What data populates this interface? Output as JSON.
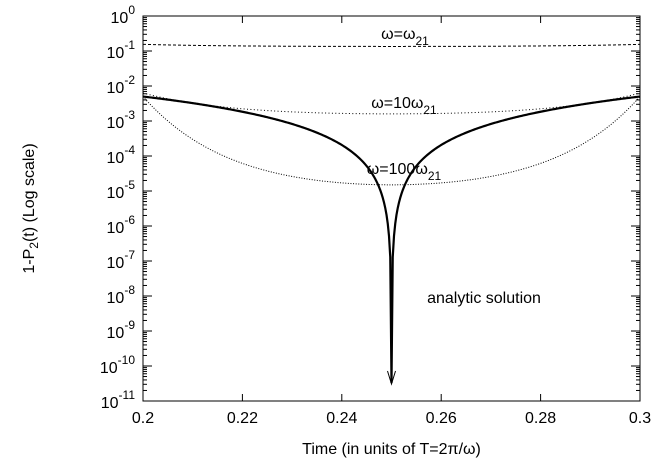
{
  "chart_data": {
    "type": "line",
    "title": "",
    "xlabel": "Time (in units of T=2π/ω)",
    "ylabel": {
      "base": "1-P",
      "sub": "2",
      "rest": "(t) (Log scale)"
    },
    "yscale": "log",
    "xlim": [
      0.2,
      0.3
    ],
    "ylim_exp": [
      -11,
      0
    ],
    "grid": false,
    "legend": "none",
    "x_ticks": [
      "0.2",
      "0.22",
      "0.24",
      "0.26",
      "0.28",
      "0.3"
    ],
    "y_ticks": [
      {
        "base": "10",
        "exp": "0"
      },
      {
        "base": "10",
        "exp": "-1"
      },
      {
        "base": "10",
        "exp": "-2"
      },
      {
        "base": "10",
        "exp": "-3"
      },
      {
        "base": "10",
        "exp": "-4"
      },
      {
        "base": "10",
        "exp": "-5"
      },
      {
        "base": "10",
        "exp": "-6"
      },
      {
        "base": "10",
        "exp": "-7"
      },
      {
        "base": "10",
        "exp": "-8"
      },
      {
        "base": "10",
        "exp": "-9"
      },
      {
        "base": "10",
        "exp": "-10"
      },
      {
        "base": "10",
        "exp": "-11"
      }
    ],
    "series": [
      {
        "style": "solid",
        "model": "analytic",
        "center": 0.25,
        "x": [
          0.2,
          0.21,
          0.22,
          0.23,
          0.24,
          0.245,
          0.25,
          0.255,
          0.26,
          0.27,
          0.28,
          0.29,
          0.3
        ],
        "y": [
          0.005,
          0.0027,
          0.0012,
          0.00039,
          6.2e-05,
          1.56e-05,
          0.0,
          1.56e-05,
          6.2e-05,
          0.00039,
          0.0012,
          0.0027,
          0.005
        ]
      },
      {
        "style": "dotted-fine",
        "model": "cosh",
        "center": 0.25,
        "ymin": 1.5e-05,
        "ymax": 0.005,
        "x": [
          0.2,
          0.225,
          0.25,
          0.275,
          0.3
        ],
        "y": [
          0.005,
          0.00023,
          1.5e-05,
          0.00023,
          0.005
        ]
      },
      {
        "style": "dotted",
        "model": "cosh",
        "center": 0.25,
        "ymin": 0.0016,
        "ymax": 0.0063,
        "x": [
          0.2,
          0.225,
          0.25,
          0.275,
          0.3
        ],
        "y": [
          0.0063,
          0.0028,
          0.0016,
          0.0028,
          0.0063
        ]
      },
      {
        "style": "dashed",
        "model": "cosh",
        "center": 0.25,
        "ymin": 0.135,
        "ymax": 0.155,
        "x": [
          0.2,
          0.25,
          0.3
        ],
        "y": [
          0.155,
          0.135,
          0.155
        ]
      }
    ],
    "annotations": [
      {
        "key": "a1",
        "base": "ω=ω",
        "sub": "21"
      },
      {
        "key": "a2",
        "base": "ω=10ω",
        "sub": "21"
      },
      {
        "key": "a3",
        "base": "ω=100ω",
        "sub": "21"
      },
      {
        "key": "a4",
        "text": "analytic solution"
      }
    ]
  }
}
